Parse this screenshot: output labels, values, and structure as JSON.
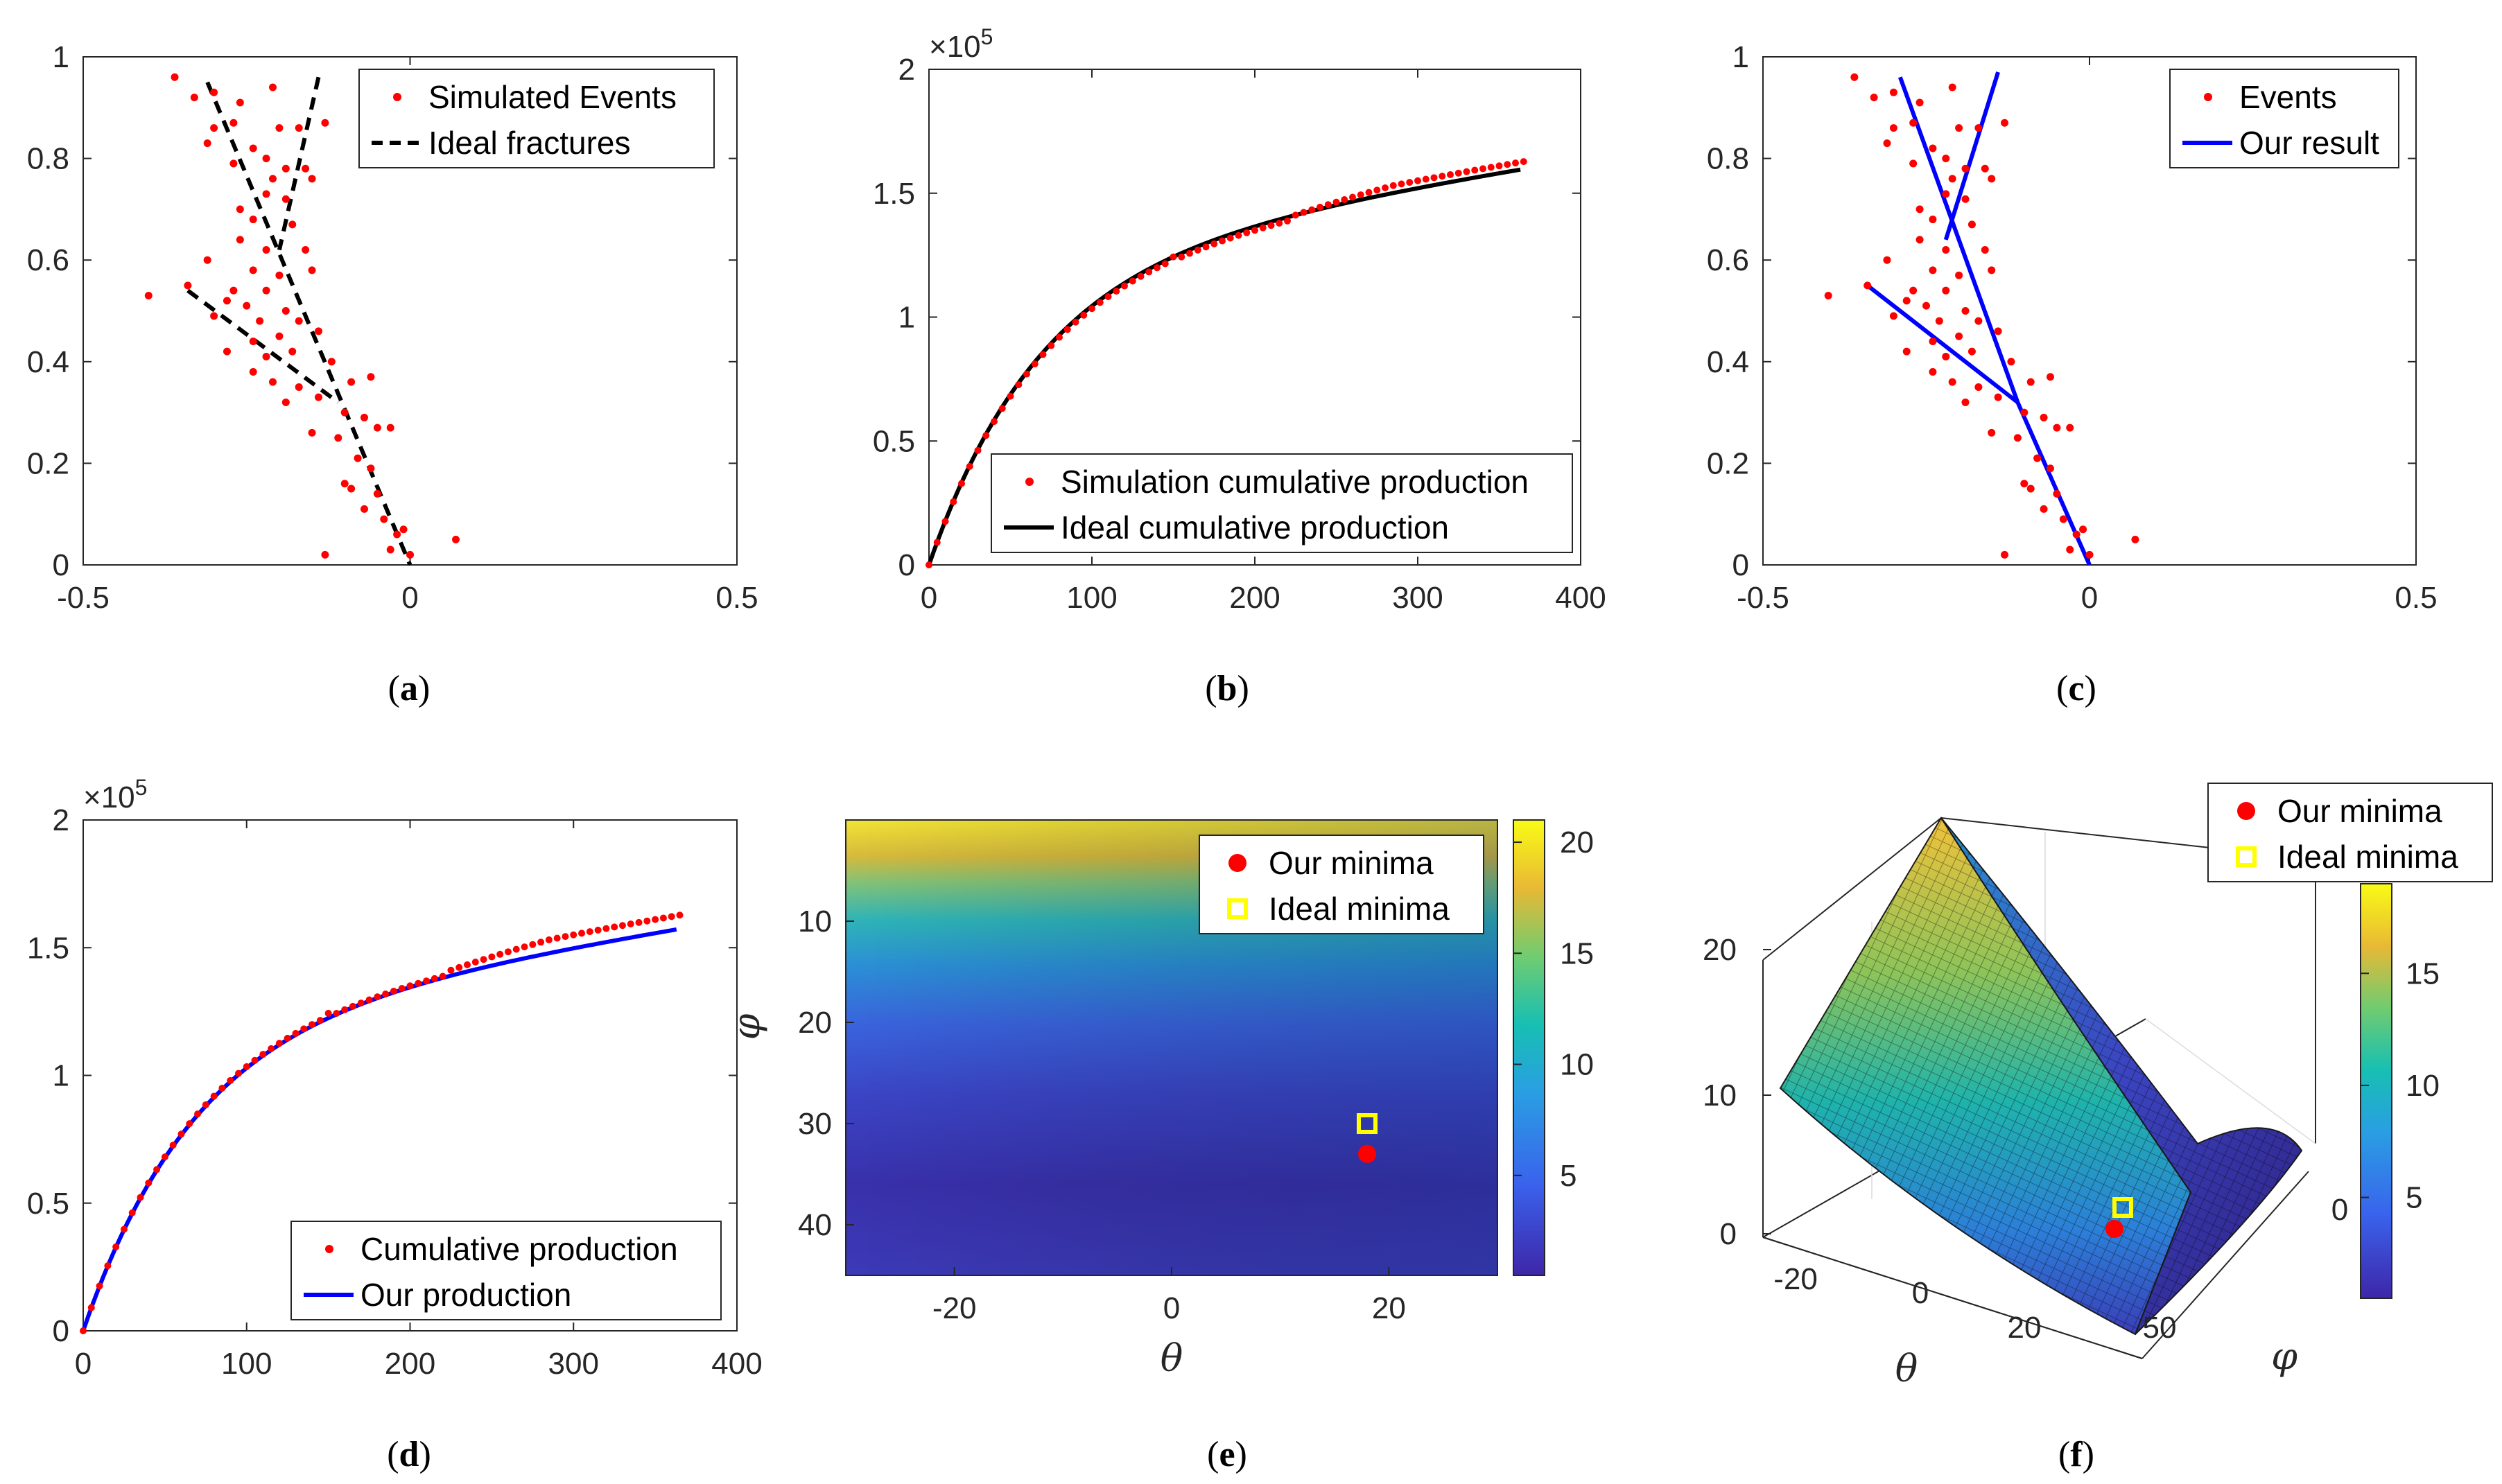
{
  "chart_data": [
    {
      "panel": "a",
      "type": "scatter",
      "caption": "a",
      "xlim": [
        -0.5,
        0.5
      ],
      "ylim": [
        0,
        1
      ],
      "xticks": [
        "-0.5",
        "0",
        "0.5"
      ],
      "yticks": [
        "0",
        "0.2",
        "0.4",
        "0.6",
        "0.8",
        "1"
      ],
      "legend": [
        "Simulated Events",
        "Ideal fractures"
      ],
      "series": [
        {
          "name": "Simulated Events",
          "kind": "points",
          "color": "#ff0000",
          "points": [
            [
              -0.36,
              0.96
            ],
            [
              -0.3,
              0.93
            ],
            [
              -0.33,
              0.92
            ],
            [
              -0.26,
              0.91
            ],
            [
              -0.21,
              0.94
            ],
            [
              -0.3,
              0.86
            ],
            [
              -0.27,
              0.87
            ],
            [
              -0.31,
              0.83
            ],
            [
              -0.24,
              0.82
            ],
            [
              -0.2,
              0.86
            ],
            [
              -0.17,
              0.86
            ],
            [
              -0.13,
              0.87
            ],
            [
              -0.27,
              0.79
            ],
            [
              -0.22,
              0.8
            ],
            [
              -0.19,
              0.78
            ],
            [
              -0.16,
              0.78
            ],
            [
              -0.21,
              0.76
            ],
            [
              -0.15,
              0.76
            ],
            [
              -0.22,
              0.73
            ],
            [
              -0.26,
              0.7
            ],
            [
              -0.19,
              0.72
            ],
            [
              -0.24,
              0.68
            ],
            [
              -0.18,
              0.67
            ],
            [
              -0.26,
              0.64
            ],
            [
              -0.22,
              0.62
            ],
            [
              -0.16,
              0.62
            ],
            [
              -0.31,
              0.6
            ],
            [
              -0.24,
              0.58
            ],
            [
              -0.2,
              0.57
            ],
            [
              -0.15,
              0.58
            ],
            [
              -0.27,
              0.54
            ],
            [
              -0.22,
              0.54
            ],
            [
              -0.34,
              0.55
            ],
            [
              -0.4,
              0.53
            ],
            [
              -0.28,
              0.52
            ],
            [
              -0.25,
              0.51
            ],
            [
              -0.19,
              0.5
            ],
            [
              -0.3,
              0.49
            ],
            [
              -0.23,
              0.48
            ],
            [
              -0.17,
              0.48
            ],
            [
              -0.24,
              0.44
            ],
            [
              -0.2,
              0.45
            ],
            [
              -0.14,
              0.46
            ],
            [
              -0.28,
              0.42
            ],
            [
              -0.22,
              0.41
            ],
            [
              -0.18,
              0.42
            ],
            [
              -0.24,
              0.38
            ],
            [
              -0.21,
              0.36
            ],
            [
              -0.17,
              0.35
            ],
            [
              -0.12,
              0.4
            ],
            [
              -0.09,
              0.36
            ],
            [
              -0.06,
              0.37
            ],
            [
              -0.19,
              0.32
            ],
            [
              -0.14,
              0.33
            ],
            [
              -0.1,
              0.3
            ],
            [
              -0.07,
              0.29
            ],
            [
              -0.05,
              0.27
            ],
            [
              -0.15,
              0.26
            ],
            [
              -0.11,
              0.25
            ],
            [
              -0.03,
              0.27
            ],
            [
              -0.08,
              0.21
            ],
            [
              -0.06,
              0.19
            ],
            [
              -0.1,
              0.16
            ],
            [
              -0.05,
              0.14
            ],
            [
              -0.09,
              0.15
            ],
            [
              -0.07,
              0.11
            ],
            [
              -0.04,
              0.09
            ],
            [
              -0.01,
              0.07
            ],
            [
              -0.02,
              0.06
            ],
            [
              -0.03,
              0.03
            ],
            [
              0.0,
              0.02
            ],
            [
              -0.13,
              0.02
            ],
            [
              0.07,
              0.05
            ]
          ]
        },
        {
          "name": "Ideal fractures",
          "kind": "dashed-lines",
          "color": "#000000",
          "segments": [
            [
              [
                -0.31,
                0.95
              ],
              [
                0.0,
                0.0
              ]
            ],
            [
              [
                -0.14,
                0.96
              ],
              [
                -0.2,
                0.62
              ]
            ],
            [
              [
                -0.34,
                0.54
              ],
              [
                -0.11,
                0.32
              ]
            ]
          ]
        }
      ]
    },
    {
      "panel": "b",
      "type": "line",
      "caption": "b",
      "xlim": [
        0,
        400
      ],
      "ylim": [
        0,
        2
      ],
      "exponent_label": "×10",
      "exponent_power": "5",
      "xticks": [
        "0",
        "100",
        "200",
        "300",
        "400"
      ],
      "yticks": [
        "0",
        "0.5",
        "1",
        "1.5",
        "2"
      ],
      "legend": [
        "Simulation cumulative production",
        "Ideal cumulative production"
      ],
      "series": [
        {
          "name": "Simulation cumulative production",
          "kind": "points",
          "color": "#ff0000",
          "offset": "sim"
        },
        {
          "name": "Ideal cumulative production",
          "kind": "line",
          "color": "#000000"
        }
      ]
    },
    {
      "panel": "c",
      "type": "scatter",
      "caption": "c",
      "xlim": [
        -0.5,
        0.5
      ],
      "ylim": [
        0,
        1
      ],
      "xticks": [
        "-0.5",
        "0",
        "0.5"
      ],
      "yticks": [
        "0",
        "0.2",
        "0.4",
        "0.6",
        "0.8",
        "1"
      ],
      "legend": [
        "Events",
        "Our result"
      ],
      "series": [
        {
          "name": "Events",
          "kind": "points",
          "color": "#ff0000",
          "same_as": "a"
        },
        {
          "name": "Our result",
          "kind": "lines",
          "color": "#0000ff",
          "segments": [
            [
              [
                -0.29,
                0.96
              ],
              [
                -0.11,
                0.32
              ],
              [
                0.0,
                0.0
              ]
            ],
            [
              [
                -0.11,
                0.32
              ],
              [
                -0.34,
                0.55
              ]
            ],
            [
              [
                -0.22,
                0.64
              ],
              [
                -0.14,
                0.97
              ]
            ]
          ]
        }
      ]
    },
    {
      "panel": "d",
      "type": "line",
      "caption": "d",
      "xlim": [
        0,
        400
      ],
      "ylim": [
        0,
        2
      ],
      "exponent_label": "×10",
      "exponent_power": "5",
      "xticks": [
        "0",
        "100",
        "200",
        "300",
        "400"
      ],
      "yticks": [
        "0",
        "0.5",
        "1",
        "1.5",
        "2"
      ],
      "legend": [
        "Cumulative production",
        "Our production"
      ],
      "series": [
        {
          "name": "Cumulative production",
          "kind": "points",
          "color": "#ff0000",
          "offset": "sim"
        },
        {
          "name": "Our production",
          "kind": "line",
          "color": "#0000ff",
          "scale": 0.985
        }
      ]
    },
    {
      "panel": "e",
      "type": "heatmap",
      "caption": "e",
      "xlabel": "θ",
      "ylabel": "φ",
      "xlim": [
        -30,
        30
      ],
      "ylim": [
        0,
        45
      ],
      "xticks": [
        "-20",
        "0",
        "20"
      ],
      "yticks": [
        "10",
        "20",
        "30",
        "40"
      ],
      "colorbar_ticks": [
        "5",
        "10",
        "15",
        "20"
      ],
      "legend": [
        "Our minima",
        "Ideal minima"
      ],
      "our_minima": [
        18,
        33
      ],
      "ideal_minima": [
        18,
        30
      ]
    },
    {
      "panel": "f",
      "type": "surface",
      "caption": "f",
      "xlabel": "θ",
      "ylabel": "φ",
      "zticks": [
        "0",
        "10",
        "20"
      ],
      "xticks": [
        "-20",
        "0",
        "20"
      ],
      "yticks": [
        "50",
        "0"
      ],
      "colorbar_ticks": [
        "5",
        "10",
        "15"
      ],
      "legend": [
        "Our minima",
        "Ideal minima"
      ]
    }
  ]
}
